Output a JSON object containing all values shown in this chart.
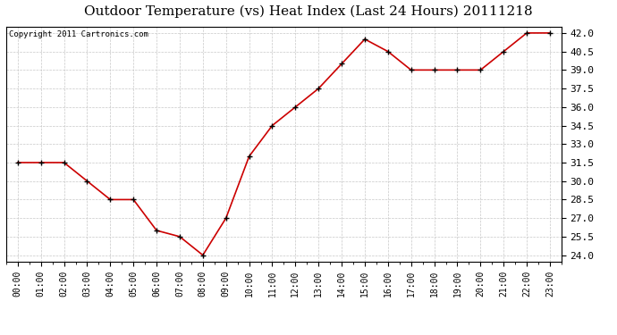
{
  "title": "Outdoor Temperature (vs) Heat Index (Last 24 Hours) 20111218",
  "copyright_text": "Copyright 2011 Cartronics.com",
  "x_labels": [
    "00:00",
    "01:00",
    "02:00",
    "03:00",
    "04:00",
    "05:00",
    "06:00",
    "07:00",
    "08:00",
    "09:00",
    "10:00",
    "11:00",
    "12:00",
    "13:00",
    "14:00",
    "15:00",
    "16:00",
    "17:00",
    "18:00",
    "19:00",
    "20:00",
    "21:00",
    "22:00",
    "23:00"
  ],
  "y_values": [
    31.5,
    31.5,
    31.5,
    30.0,
    28.5,
    28.5,
    26.0,
    25.5,
    24.0,
    27.0,
    32.0,
    34.5,
    36.0,
    37.5,
    39.5,
    41.5,
    40.5,
    39.0,
    39.0,
    39.0,
    39.0,
    40.5,
    42.0,
    42.0
  ],
  "line_color": "#cc0000",
  "marker": "+",
  "marker_color": "#000000",
  "marker_size": 5,
  "line_width": 1.2,
  "ylim": [
    23.5,
    42.5
  ],
  "yticks": [
    24.0,
    25.5,
    27.0,
    28.5,
    30.0,
    31.5,
    33.0,
    34.5,
    36.0,
    37.5,
    39.0,
    40.5,
    42.0
  ],
  "background_color": "#ffffff",
  "plot_bg_color": "#ffffff",
  "grid_color": "#c8c8c8",
  "title_fontsize": 11,
  "copyright_fontsize": 6.5,
  "tick_fontsize": 7,
  "ytick_fontsize": 8
}
